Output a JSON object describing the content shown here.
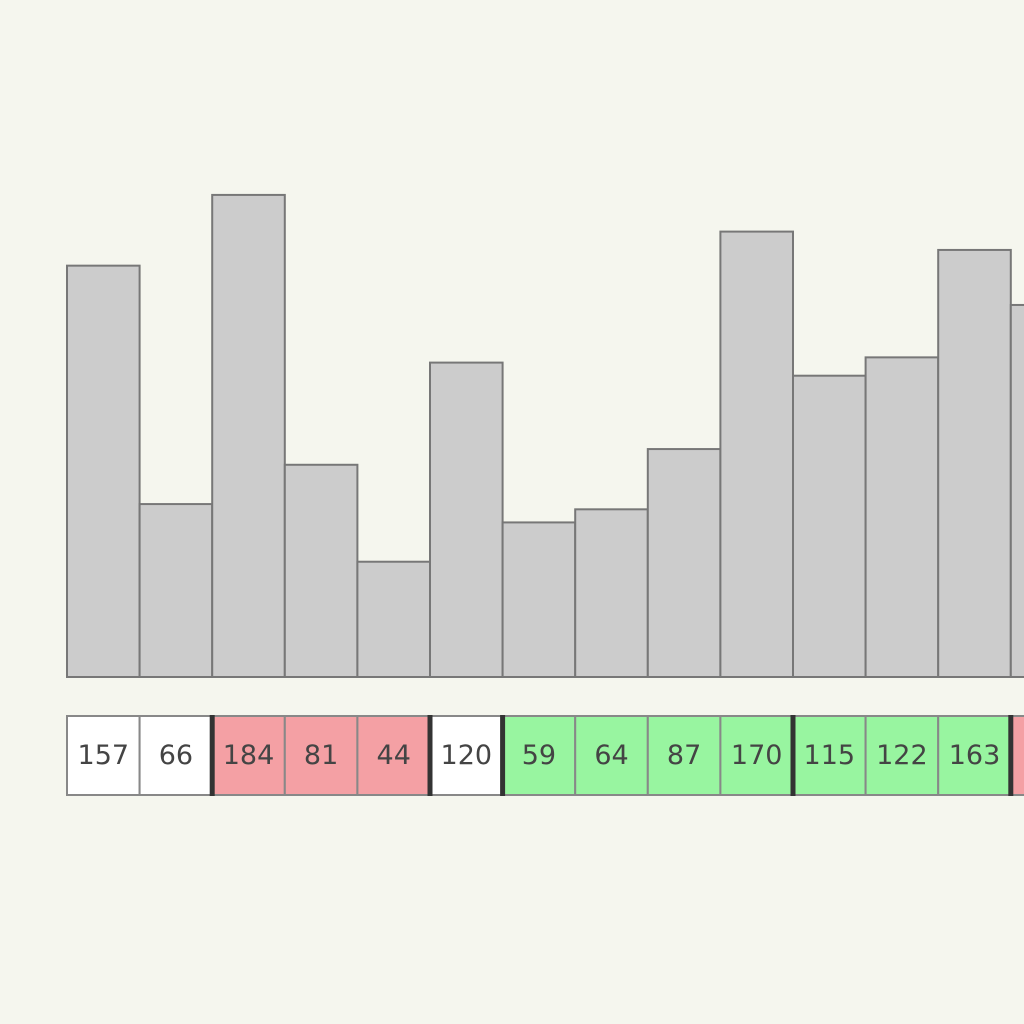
{
  "colors": {
    "default": "#ffffff",
    "pink": "#f4a0a4",
    "green": "#98f5a0",
    "bar": "#cccccc"
  },
  "groups": [
    {
      "state": "default",
      "values": [
        157,
        66
      ]
    },
    {
      "state": "pink",
      "values": [
        184,
        81,
        44
      ]
    },
    {
      "state": "default",
      "values": [
        120
      ]
    },
    {
      "state": "green",
      "values": [
        59,
        64,
        87,
        170
      ]
    },
    {
      "state": "green",
      "values": [
        115,
        122,
        163
      ]
    },
    {
      "state": "pink",
      "values": [
        142
      ]
    }
  ]
}
